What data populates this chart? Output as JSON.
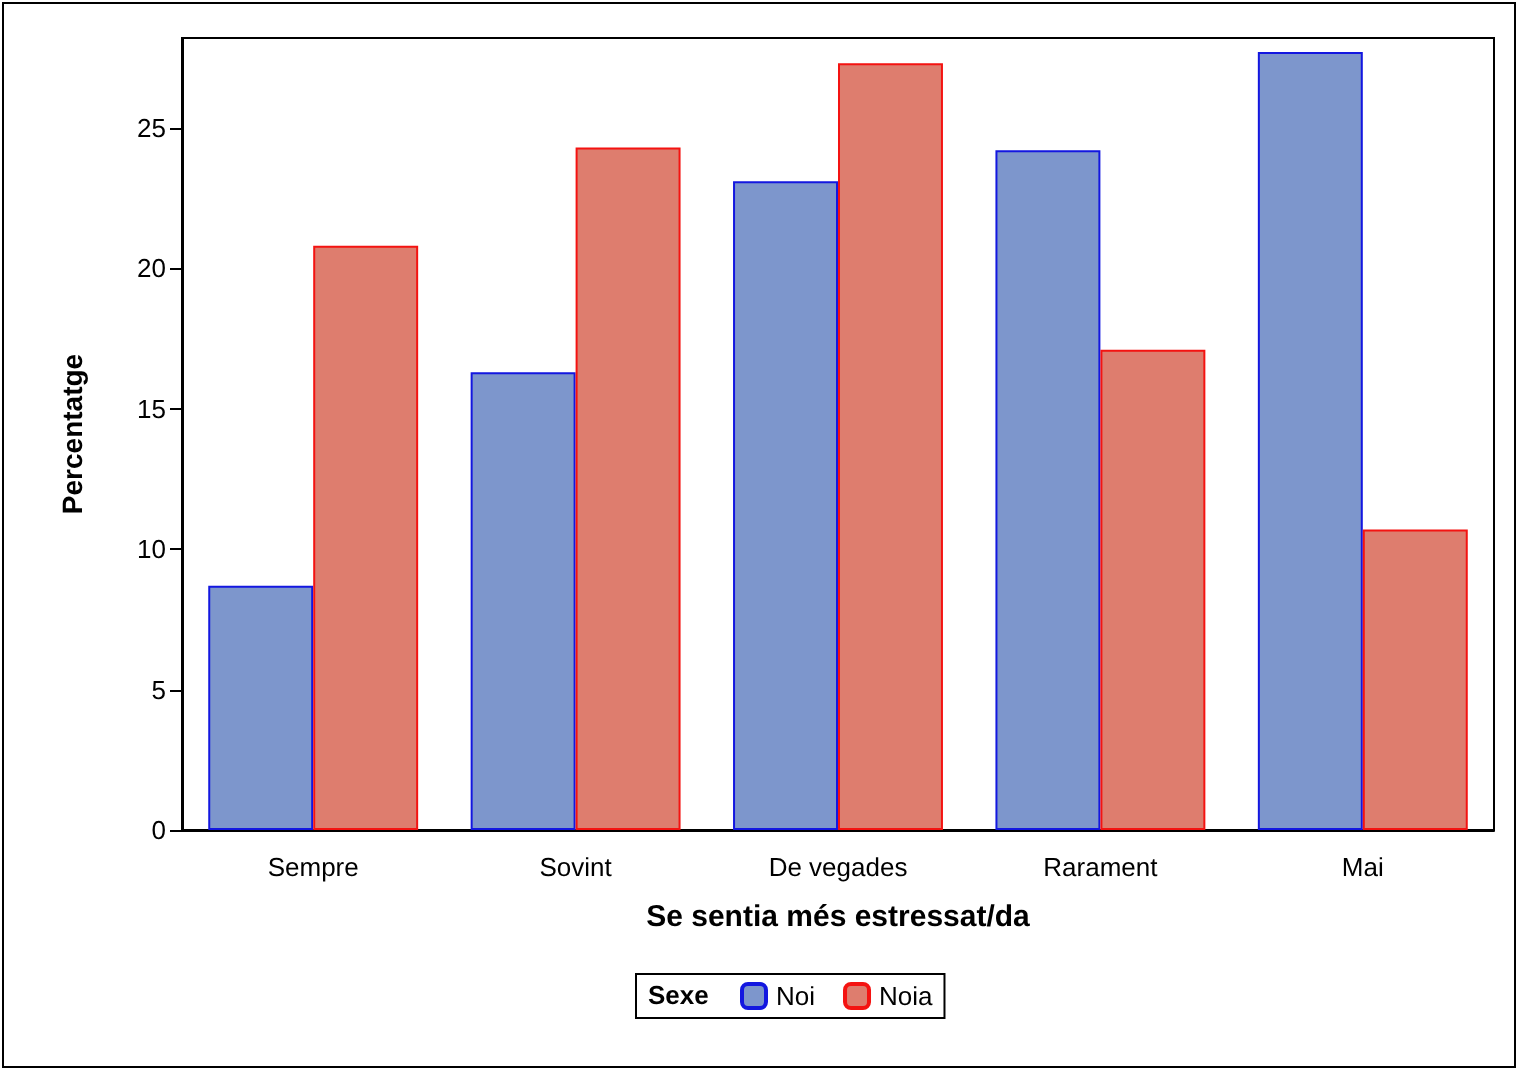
{
  "chart_data": {
    "type": "bar",
    "xlabel": "Se sentia més estressat/da",
    "ylabel": "Percentatge",
    "legend_title": "Sexe",
    "categories": [
      "Sempre",
      "Sovint",
      "De vegades",
      "Rarament",
      "Mai"
    ],
    "series": [
      {
        "name": "Noi",
        "color": "#7d96cc",
        "values": [
          8.7,
          16.3,
          23.1,
          24.2,
          27.7
        ]
      },
      {
        "name": "Noia",
        "color": "#de7d6e",
        "values": [
          20.8,
          24.3,
          27.3,
          17.1,
          10.7
        ]
      }
    ],
    "ylim": [
      0,
      28.2
    ],
    "yticks": [
      0,
      5,
      10,
      15,
      20,
      25
    ],
    "grid": false,
    "legend": "bottom"
  }
}
